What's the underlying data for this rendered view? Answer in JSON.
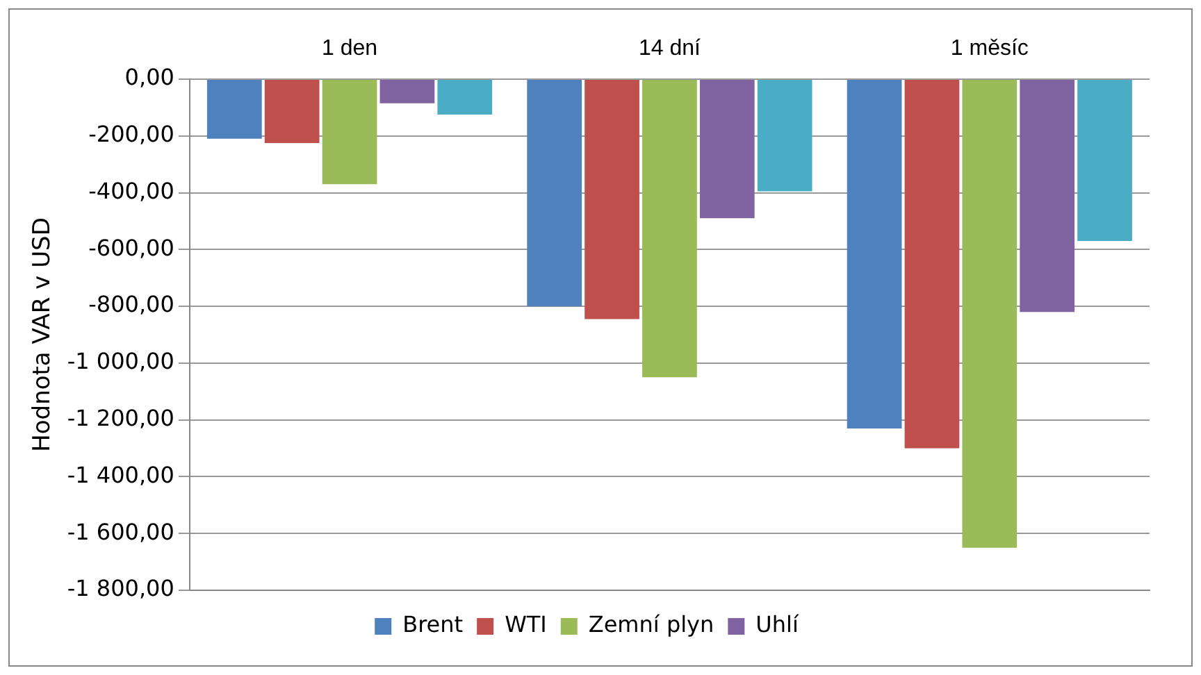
{
  "chart_data": {
    "type": "bar",
    "ylabel": "Hodnota VAR v USD",
    "categories": [
      "1 den",
      "14 dní",
      "1 měsíc"
    ],
    "series": [
      {
        "name": "Brent",
        "color": "#4f81bd",
        "values": [
          -210,
          -800,
          -1230
        ]
      },
      {
        "name": "WTI",
        "color": "#c0504d",
        "values": [
          -225,
          -845,
          -1300
        ]
      },
      {
        "name": "Zemní plyn",
        "color": "#9bbb59",
        "values": [
          -370,
          -1050,
          -1650
        ]
      },
      {
        "name": "Uhlí",
        "color": "#8064a2",
        "values": [
          -85,
          -490,
          -820
        ]
      },
      {
        "color": "#4bacc6",
        "values": [
          -125,
          -395,
          -570
        ]
      }
    ],
    "ylim": [
      -1800,
      0
    ],
    "yticks": [
      {
        "value": 0,
        "label": "0,00"
      },
      {
        "value": -200,
        "label": "-200,00"
      },
      {
        "value": -400,
        "label": "-400,00"
      },
      {
        "value": -600,
        "label": "-600,00"
      },
      {
        "value": -800,
        "label": "-800,00"
      },
      {
        "value": -1000,
        "label": "-1 000,00"
      },
      {
        "value": -1200,
        "label": "-1 200,00"
      },
      {
        "value": -1400,
        "label": "-1 400,00"
      },
      {
        "value": -1600,
        "label": "-1 600,00"
      },
      {
        "value": -1800,
        "label": "-1 800,00"
      }
    ],
    "grid": "y",
    "legend": "bottom"
  }
}
